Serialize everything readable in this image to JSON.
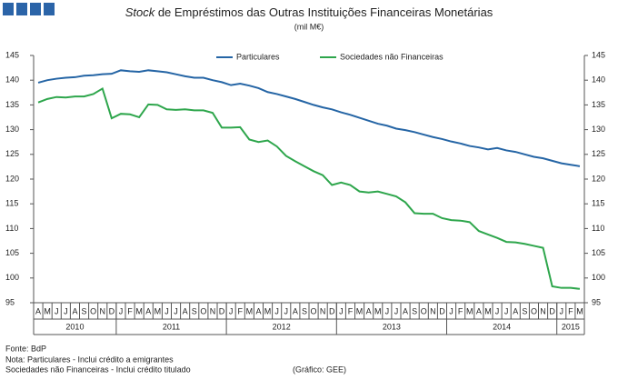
{
  "chart_data": {
    "type": "line",
    "title": {
      "italic": "Stock",
      "rest": " de Empréstimos das Outras Instituições Financeiras Monetárias"
    },
    "subtitle": "(mil M€)",
    "categories": [
      "A",
      "M",
      "J",
      "J",
      "A",
      "S",
      "O",
      "N",
      "D",
      "J",
      "F",
      "M",
      "A",
      "M",
      "J",
      "J",
      "A",
      "S",
      "O",
      "N",
      "D",
      "J",
      "F",
      "M",
      "A",
      "M",
      "J",
      "J",
      "A",
      "S",
      "O",
      "N",
      "D",
      "J",
      "F",
      "M",
      "A",
      "M",
      "J",
      "J",
      "A",
      "S",
      "O",
      "N",
      "D",
      "J",
      "F",
      "M",
      "A",
      "M",
      "J",
      "J",
      "A",
      "S",
      "O",
      "N",
      "D",
      "J",
      "F",
      "M"
    ],
    "years": [
      "2010",
      "2011",
      "2012",
      "2013",
      "2014",
      "2015"
    ],
    "series": [
      {
        "name": "Particulares",
        "color": "#2565a5",
        "values": [
          139.5,
          140.0,
          140.3,
          140.5,
          140.6,
          140.9,
          141.0,
          141.2,
          141.3,
          142.0,
          141.8,
          141.7,
          142.0,
          141.8,
          141.6,
          141.2,
          140.8,
          140.5,
          140.5,
          140.0,
          139.6,
          139.0,
          139.3,
          138.9,
          138.4,
          137.6,
          137.2,
          136.7,
          136.2,
          135.6,
          135.0,
          134.5,
          134.1,
          133.5,
          133.0,
          132.4,
          131.8,
          131.2,
          130.8,
          130.2,
          129.9,
          129.5,
          129.0,
          128.5,
          128.1,
          127.6,
          127.2,
          126.7,
          126.4,
          126.0,
          126.3,
          125.8,
          125.5,
          125.0,
          124.5,
          124.2,
          123.7,
          123.2,
          122.9,
          122.6
        ]
      },
      {
        "name": "Sociedades não Financeiras",
        "color": "#2ea64c",
        "values": [
          135.5,
          136.2,
          136.6,
          136.5,
          136.7,
          136.7,
          137.2,
          138.3,
          132.3,
          133.2,
          133.1,
          132.5,
          135.1,
          135.0,
          134.1,
          134.0,
          134.1,
          133.9,
          133.9,
          133.4,
          130.4,
          130.4,
          130.5,
          128.0,
          127.5,
          127.8,
          126.6,
          124.7,
          123.6,
          122.6,
          121.6,
          120.8,
          118.8,
          119.3,
          118.8,
          117.5,
          117.3,
          117.5,
          117.0,
          116.5,
          115.3,
          113.1,
          113.0,
          113.0,
          112.1,
          111.7,
          111.6,
          111.3,
          109.5,
          108.8,
          108.1,
          107.3,
          107.2,
          106.9,
          106.5,
          106.1,
          98.3,
          98.0,
          98.0,
          97.8
        ]
      }
    ],
    "ylim": [
      95,
      145
    ],
    "yticks": [
      95,
      100,
      105,
      110,
      115,
      120,
      125,
      130,
      135,
      140,
      145
    ],
    "legend": "top",
    "notes": [
      "Fonte: BdP",
      "Nota: Particulares - Inclui crédito a emigrantes",
      "Sociedades não Financeiras - Inclui crédito titulado"
    ],
    "credit": "(Gráfico: GEE)"
  }
}
